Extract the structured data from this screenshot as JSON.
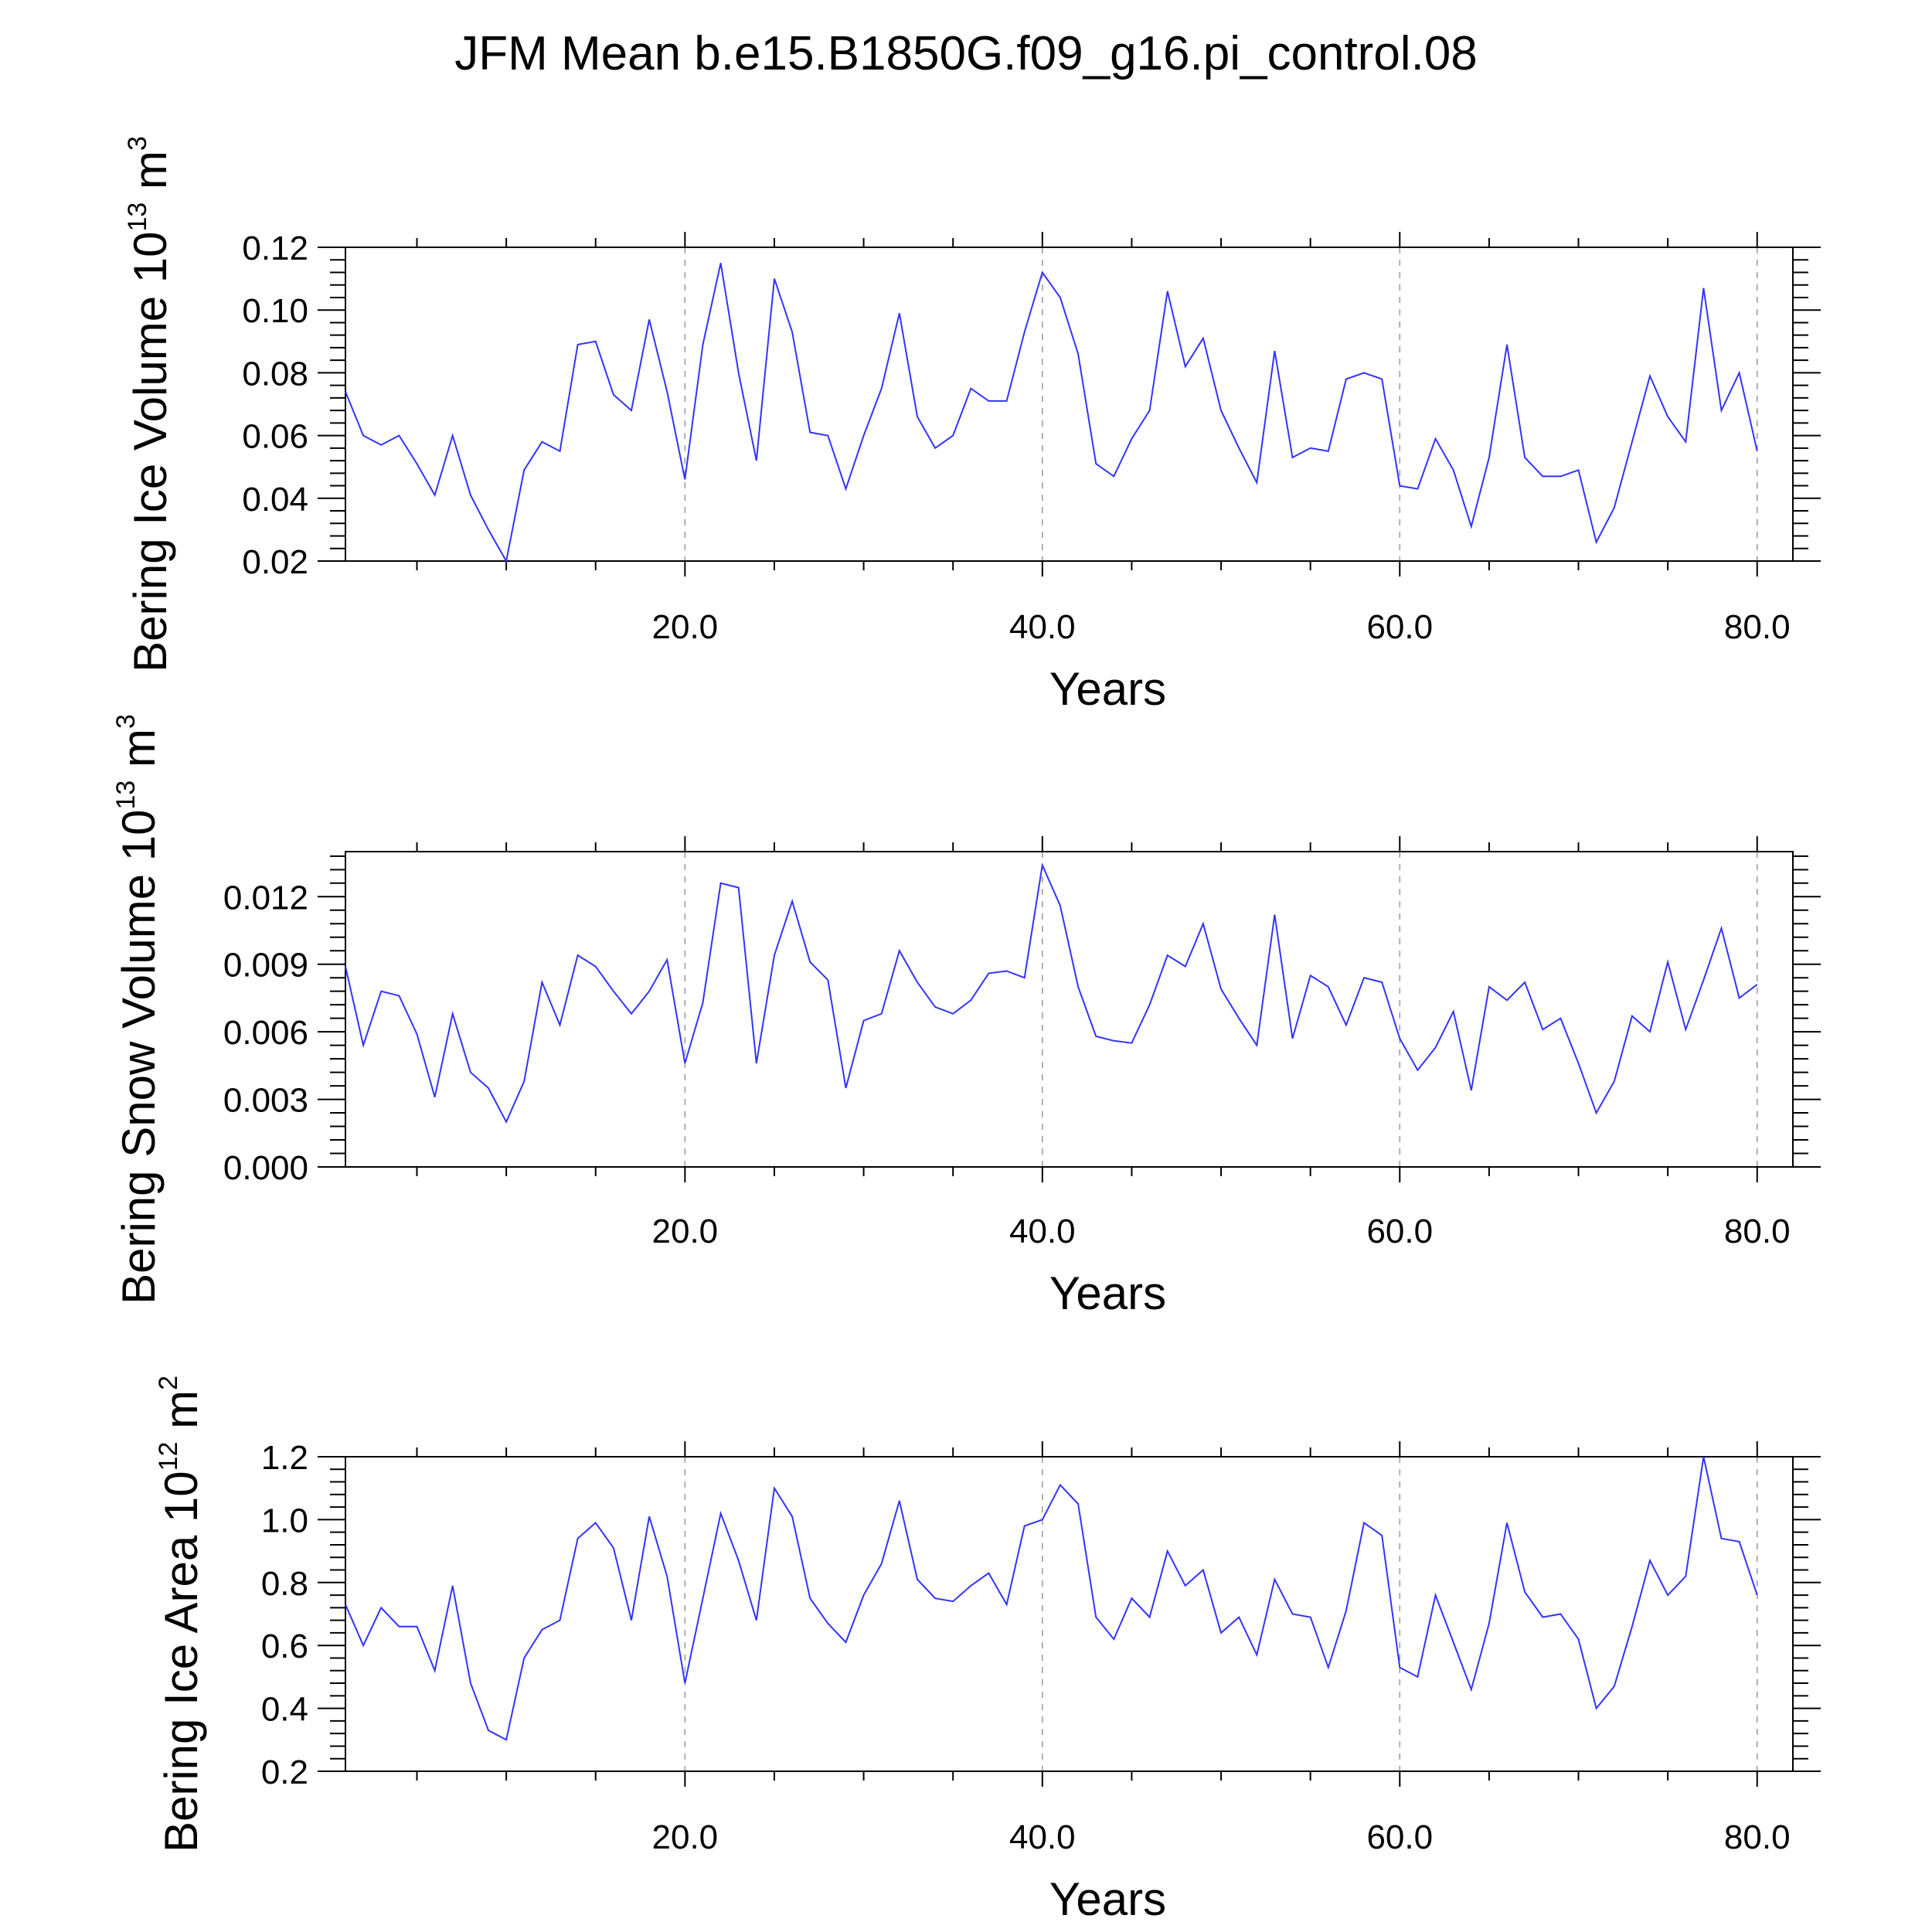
{
  "page_title": "JFM Mean b.e15.B1850G.f09_g16.pi_control.08",
  "colors": {
    "series": "#3333ff",
    "axis": "#000000",
    "grid": "#999999"
  },
  "chart_data": [
    {
      "type": "line",
      "ylabel": {
        "text": "Bering Ice Volume 10",
        "exp": "13",
        "unit": " m",
        "unit_exp": "3"
      },
      "xlabel": "Years",
      "xlim": [
        1,
        82
      ],
      "ylim": [
        0.02,
        0.12
      ],
      "xticks": [
        20,
        40,
        60,
        80
      ],
      "xtick_labels": [
        "20.0",
        "40.0",
        "60.0",
        "80.0"
      ],
      "yticks": [
        0.02,
        0.04,
        0.06,
        0.08,
        0.1,
        0.12
      ],
      "ytick_labels": [
        "0.02",
        "0.04",
        "0.06",
        "0.08",
        "0.10",
        "0.12"
      ],
      "grid": "dashed vertical at major x ticks",
      "series": [
        {
          "name": "Bering Ice Volume",
          "x_start": 1,
          "values": [
            0.074,
            0.06,
            0.057,
            0.06,
            0.051,
            0.041,
            0.06,
            0.041,
            0.03,
            0.02,
            0.049,
            0.058,
            0.055,
            0.089,
            0.09,
            0.073,
            0.068,
            0.097,
            0.074,
            0.046,
            0.089,
            0.115,
            0.08,
            0.052,
            0.11,
            0.093,
            0.061,
            0.06,
            0.043,
            0.06,
            0.075,
            0.099,
            0.066,
            0.056,
            0.06,
            0.075,
            0.071,
            0.071,
            0.093,
            0.112,
            0.104,
            0.086,
            0.051,
            0.047,
            0.059,
            0.068,
            0.106,
            0.082,
            0.091,
            0.068,
            0.056,
            0.045,
            0.087,
            0.053,
            0.056,
            0.055,
            0.078,
            0.08,
            0.078,
            0.044,
            0.043,
            0.059,
            0.049,
            0.031,
            0.053,
            0.089,
            0.053,
            0.047,
            0.047,
            0.049,
            0.026,
            0.037,
            0.058,
            0.079,
            0.066,
            0.058,
            0.107,
            0.068,
            0.08,
            0.055
          ]
        }
      ]
    },
    {
      "type": "line",
      "ylabel": {
        "text": "Bering Snow Volume 10",
        "exp": "13",
        "unit": " m",
        "unit_exp": "3"
      },
      "xlabel": "Years",
      "xlim": [
        1,
        82
      ],
      "ylim": [
        0.0,
        0.014
      ],
      "xticks": [
        20,
        40,
        60,
        80
      ],
      "xtick_labels": [
        "20.0",
        "40.0",
        "60.0",
        "80.0"
      ],
      "yticks": [
        0.0,
        0.003,
        0.006,
        0.009,
        0.012
      ],
      "ytick_labels": [
        "0.000",
        "0.003",
        "0.006",
        "0.009",
        "0.012"
      ],
      "grid": "dashed vertical at major x ticks",
      "series": [
        {
          "name": "Bering Snow Volume",
          "x_start": 1,
          "values": [
            0.0089,
            0.0054,
            0.0078,
            0.0076,
            0.0059,
            0.0031,
            0.0068,
            0.0042,
            0.0035,
            0.002,
            0.0038,
            0.0082,
            0.0063,
            0.0094,
            0.0089,
            0.0078,
            0.0068,
            0.0078,
            0.0092,
            0.0046,
            0.0073,
            0.0126,
            0.0124,
            0.0046,
            0.0094,
            0.0118,
            0.0091,
            0.0083,
            0.0035,
            0.0065,
            0.0068,
            0.0096,
            0.0082,
            0.0071,
            0.0068,
            0.0074,
            0.0086,
            0.0087,
            0.0084,
            0.0134,
            0.0116,
            0.008,
            0.0058,
            0.0056,
            0.0055,
            0.0072,
            0.0094,
            0.0089,
            0.0108,
            0.0079,
            0.0066,
            0.0054,
            0.0112,
            0.0057,
            0.0085,
            0.008,
            0.0063,
            0.0084,
            0.0082,
            0.0057,
            0.0043,
            0.0053,
            0.0069,
            0.0034,
            0.008,
            0.0074,
            0.0082,
            0.0061,
            0.0066,
            0.0046,
            0.0024,
            0.0038,
            0.0067,
            0.006,
            0.0091,
            0.0061,
            0.0083,
            0.0106,
            0.0075,
            0.0081
          ]
        }
      ]
    },
    {
      "type": "line",
      "ylabel": {
        "text": "Bering Ice Area 10",
        "exp": "12",
        "unit": " m",
        "unit_exp": "2"
      },
      "xlabel": "Years",
      "xlim": [
        1,
        82
      ],
      "ylim": [
        0.2,
        1.2
      ],
      "xticks": [
        20,
        40,
        60,
        80
      ],
      "xtick_labels": [
        "20.0",
        "40.0",
        "60.0",
        "80.0"
      ],
      "yticks": [
        0.2,
        0.4,
        0.6,
        0.8,
        1.0,
        1.2
      ],
      "ytick_labels": [
        "0.2",
        "0.4",
        "0.6",
        "0.8",
        "1.0",
        "1.2"
      ],
      "grid": "dashed vertical at major x ticks",
      "series": [
        {
          "name": "Bering Ice Area",
          "x_start": 1,
          "values": [
            0.73,
            0.6,
            0.72,
            0.66,
            0.66,
            0.52,
            0.79,
            0.48,
            0.33,
            0.3,
            0.56,
            0.65,
            0.68,
            0.94,
            0.99,
            0.91,
            0.68,
            1.01,
            0.82,
            0.48,
            0.75,
            1.02,
            0.87,
            0.68,
            1.1,
            1.01,
            0.75,
            0.67,
            0.61,
            0.76,
            0.86,
            1.06,
            0.81,
            0.75,
            0.74,
            0.79,
            0.83,
            0.73,
            0.98,
            1.0,
            1.11,
            1.05,
            0.69,
            0.62,
            0.75,
            0.69,
            0.9,
            0.79,
            0.84,
            0.64,
            0.69,
            0.57,
            0.81,
            0.7,
            0.69,
            0.53,
            0.71,
            0.99,
            0.95,
            0.53,
            0.5,
            0.76,
            0.61,
            0.46,
            0.67,
            0.99,
            0.77,
            0.69,
            0.7,
            0.62,
            0.4,
            0.47,
            0.66,
            0.87,
            0.76,
            0.82,
            1.2,
            0.94,
            0.93,
            0.76
          ]
        }
      ]
    }
  ]
}
